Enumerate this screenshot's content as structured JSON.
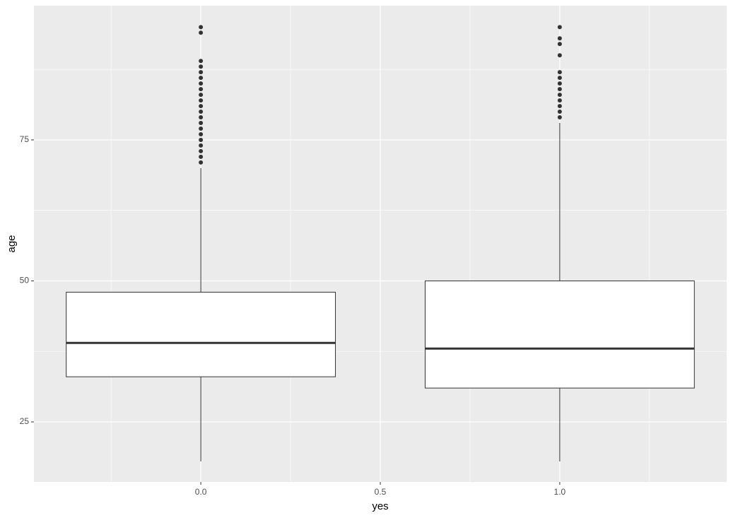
{
  "chart_data": {
    "type": "boxplot",
    "x_label": "yes",
    "y_label": "age",
    "xlim": [
      -0.465,
      1.465
    ],
    "ylim": [
      14.35,
      98.8
    ],
    "xticks": [
      {
        "value": 0,
        "label": "0.0"
      },
      {
        "value": 0.5,
        "label": "0.5"
      },
      {
        "value": 1,
        "label": "1.0"
      }
    ],
    "x_minor_ticks": [
      -0.25,
      0.25,
      0.75,
      1.25
    ],
    "yticks": [
      25,
      50,
      75
    ],
    "y_minor_ticks": [
      37.5,
      62.5,
      87.5
    ],
    "grid": true,
    "boxes": [
      {
        "x": 0,
        "low": 18,
        "q1": 33,
        "median": 39,
        "q3": 48,
        "high": 70,
        "outliers": [
          71,
          72,
          73,
          74,
          75,
          76,
          77,
          78,
          79,
          80,
          81,
          82,
          83,
          84,
          85,
          86,
          87,
          88,
          89,
          94,
          95
        ]
      },
      {
        "x": 1,
        "low": 18,
        "q1": 31,
        "median": 38,
        "q3": 50,
        "high": 78,
        "outliers": [
          79,
          80,
          81,
          82,
          83,
          84,
          85,
          86,
          87,
          90,
          92,
          93,
          95
        ]
      }
    ]
  }
}
